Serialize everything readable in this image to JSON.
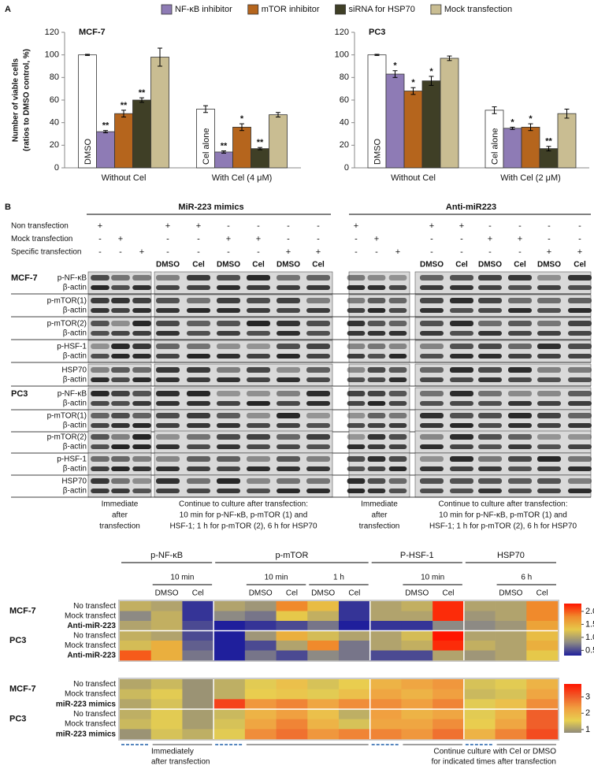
{
  "panel_a_label": "A",
  "chart_data": [
    {
      "type": "bar",
      "title": "MCF-7",
      "ylabel": [
        "Number of viable cells",
        "(ratios  to DMSO control, %)"
      ],
      "categories": [
        "Without Cel",
        "With Cel (4 μM)"
      ],
      "ylim": [
        0,
        120
      ],
      "yticks": [
        0,
        20,
        40,
        60,
        80,
        100,
        120
      ],
      "series": [
        {
          "color": "#ffffff",
          "values": [
            100,
            52
          ],
          "errors": [
            0.5,
            3
          ],
          "bar_labels": [
            "DMSO",
            "Cel alone"
          ]
        },
        {
          "name": "NF-κB inhibitor",
          "color": "#8e7bb5",
          "values": [
            32,
            14
          ],
          "errors": [
            1,
            1
          ],
          "annotations": [
            "**",
            "**"
          ]
        },
        {
          "name": "mTOR inhibitor",
          "color": "#b5651d",
          "values": [
            48,
            36
          ],
          "errors": [
            3,
            3
          ],
          "annotations": [
            "**",
            "*"
          ]
        },
        {
          "name": "siRNA for HSP70",
          "color": "#3f3f26",
          "values": [
            60,
            17
          ],
          "errors": [
            2,
            1
          ],
          "annotations": [
            "**",
            "**"
          ]
        },
        {
          "name": "Mock transfection",
          "color": "#c9bd92",
          "values": [
            98,
            47
          ],
          "errors": [
            8,
            2
          ]
        }
      ]
    },
    {
      "type": "bar",
      "title": "PC3",
      "categories": [
        "Without Cel",
        "With Cel (2 μM)"
      ],
      "ylim": [
        0,
        120
      ],
      "yticks": [
        0,
        20,
        40,
        60,
        80,
        100,
        120
      ],
      "series": [
        {
          "color": "#ffffff",
          "values": [
            100,
            51
          ],
          "errors": [
            0.5,
            3
          ],
          "bar_labels": [
            "DMSO",
            "Cel alone"
          ]
        },
        {
          "color": "#8e7bb5",
          "values": [
            83,
            35
          ],
          "errors": [
            3,
            1
          ],
          "annotations": [
            "*",
            "*"
          ]
        },
        {
          "color": "#b5651d",
          "values": [
            68,
            36
          ],
          "errors": [
            3,
            3
          ],
          "annotations": [
            "*",
            "*"
          ]
        },
        {
          "color": "#3f3f26",
          "values": [
            77,
            17
          ],
          "errors": [
            4,
            2
          ],
          "annotations": [
            "*",
            "**"
          ]
        },
        {
          "color": "#c9bd92",
          "values": [
            97,
            48
          ],
          "errors": [
            2,
            4
          ]
        }
      ]
    },
    {
      "type": "heatmap",
      "groups": [
        {
          "name": "p-NF-κB",
          "times": [
            "10 min"
          ],
          "columns": [
            null,
            "DMSO",
            "Cel"
          ]
        },
        {
          "name": "p-mTOR",
          "times": [
            "10 min",
            "1 h"
          ],
          "columns": [
            null,
            "DMSO",
            "Cel",
            "DMSO",
            "Cel"
          ]
        },
        {
          "name": "P-HSF-1",
          "times": [
            "10 min"
          ],
          "columns": [
            null,
            "DMSO",
            "Cel"
          ]
        },
        {
          "name": "HSP70",
          "times": [
            "6 h"
          ],
          "columns": [
            null,
            "DMSO",
            "Cel"
          ]
        }
      ],
      "row_groups": [
        "MCF-7",
        "PC3"
      ],
      "rows": [
        "No transfect",
        "Mock transfect",
        "Anti-miR-223",
        "No transfect",
        "Mock transfect",
        "Anti-miR-223"
      ],
      "values": [
        [
          1.1,
          1.0,
          0.4,
          1.0,
          0.9,
          1.8,
          1.4,
          0.4,
          1.0,
          1.1,
          2.2,
          1.0,
          1.0,
          1.8
        ],
        [
          0.8,
          1.1,
          0.4,
          0.8,
          0.7,
          1.3,
          1.1,
          0.4,
          1.0,
          1.0,
          2.2,
          0.9,
          1.0,
          1.8
        ],
        [
          1.0,
          1.1,
          0.5,
          0.3,
          0.4,
          0.5,
          0.7,
          0.3,
          0.4,
          0.4,
          0.8,
          0.8,
          0.9,
          1.6
        ],
        [
          1.1,
          1.0,
          0.5,
          0.3,
          0.9,
          1.5,
          1.2,
          1.0,
          1.0,
          1.2,
          2.3,
          1.0,
          1.0,
          1.4
        ],
        [
          1.2,
          1.5,
          0.6,
          0.3,
          0.5,
          1.0,
          1.8,
          0.7,
          1.0,
          1.1,
          2.2,
          1.1,
          1.0,
          1.5
        ],
        [
          2.0,
          1.5,
          0.7,
          0.3,
          0.7,
          0.5,
          0.8,
          0.7,
          0.5,
          0.5,
          1.0,
          0.9,
          1.0,
          1.3
        ]
      ],
      "clim": [
        0.3,
        2.3
      ],
      "cticks": [
        0.5,
        {
          "value": 1,
          "label": "1.0"
        },
        1.5,
        {
          "value": 2,
          "label": "2.0"
        }
      ],
      "colors": [
        "#1f1f9c",
        "#8d8a84",
        "#e6c84a",
        "#f08a2c",
        "#ff1500"
      ]
    },
    {
      "type": "heatmap",
      "row_groups": [
        "MCF-7",
        "PC3"
      ],
      "rows": [
        "No transfect",
        "Mock transfect",
        "miR-223 mimics",
        "No transfect",
        "Mock transfect",
        "miR-223 mimics"
      ],
      "values": [
        [
          1.1,
          1.3,
          0.9,
          1.2,
          1.5,
          1.8,
          1.4,
          1.6,
          2.0,
          2.2,
          2.4,
          1.4,
          1.5,
          2.0
        ],
        [
          1.3,
          1.5,
          0.9,
          1.2,
          1.6,
          1.7,
          1.5,
          1.8,
          2.2,
          2.0,
          2.3,
          1.3,
          1.4,
          2.2
        ],
        [
          1.1,
          1.4,
          0.9,
          3.3,
          2.4,
          2.6,
          2.2,
          2.5,
          2.5,
          2.3,
          2.6,
          1.5,
          1.8,
          2.5
        ],
        [
          1.2,
          1.5,
          1.0,
          1.3,
          2.0,
          2.3,
          1.8,
          1.2,
          2.3,
          2.0,
          2.2,
          1.5,
          2.0,
          3.0
        ],
        [
          1.3,
          1.5,
          1.0,
          1.4,
          2.2,
          2.6,
          2.0,
          1.4,
          2.2,
          2.2,
          2.5,
          1.6,
          2.2,
          3.0
        ],
        [
          0.9,
          1.4,
          1.2,
          1.5,
          2.5,
          2.8,
          2.4,
          2.6,
          2.6,
          2.4,
          2.8,
          2.0,
          2.6,
          3.2
        ]
      ],
      "clim": [
        0.8,
        3.8
      ],
      "cticks": [
        1,
        2,
        3
      ],
      "colors": [
        "#8f8a7a",
        "#e8d050",
        "#f0a040",
        "#f05a28",
        "#ff1500"
      ]
    }
  ],
  "panel_b": {
    "label": "B",
    "treatments": [
      "Non transfection",
      "Mock transfection",
      "Specific transfection"
    ],
    "sides": [
      {
        "title": "MiR-223 mimics",
        "signs": [
          [
            "+",
            null,
            null,
            "+",
            "+",
            "-",
            "-",
            "-",
            "-"
          ],
          [
            "-",
            "+",
            null,
            "-",
            "-",
            "+",
            "+",
            "-",
            "-"
          ],
          [
            "-",
            "-",
            "+",
            "-",
            "-",
            "-",
            "-",
            "+",
            "+"
          ]
        ],
        "conditions": [
          "DMSO",
          "Cel",
          "DMSO",
          "Cel",
          "DMSO",
          "Cel"
        ],
        "caption_immediate": [
          "Immediate",
          "after",
          "transfection"
        ],
        "caption_continue": [
          "Continue to culture after transfection:",
          "10 min for p-NF-κB, p-mTOR (1)  and",
          "HSF-1; 1 h for p-mTOR (2), 6 h for HSP70"
        ]
      },
      {
        "title": "Anti-miR223",
        "signs": [
          [
            "+",
            null,
            null,
            "+",
            "+",
            "-",
            "-",
            "-",
            "-"
          ],
          [
            "-",
            "+",
            null,
            "-",
            "-",
            "+",
            "+",
            "-",
            "-"
          ],
          [
            "-",
            "-",
            "+",
            "-",
            "-",
            "-",
            "-",
            "+",
            "+"
          ]
        ],
        "conditions": [
          "DMSO",
          "Cel",
          "DMSO",
          "Cel",
          "DMSO",
          "Cel"
        ],
        "caption_immediate": [
          "Immediate",
          "after",
          "transfection"
        ],
        "caption_continue": [
          "Continue to culture after transfection:",
          "10 min for p-NF-κB, p-mTOR (1)  and",
          "HSF-1; 1 h for p-mTOR (2), 6 h for HSP70"
        ]
      }
    ],
    "cell_lines": [
      {
        "name": "MCF-7",
        "blots": [
          [
            "p-NF-κB",
            "β-actin"
          ],
          [
            "p-mTOR(1)",
            "β-actin"
          ],
          [
            "p-mTOR(2)",
            "β-actin"
          ],
          [
            "p-HSF-1",
            "β-actin"
          ],
          [
            "HSP70",
            "β-actin"
          ]
        ]
      },
      {
        "name": "PC3",
        "blots": [
          [
            "p-NF-κB",
            "β-actin"
          ],
          [
            "p-mTOR(1)",
            "β-actin"
          ],
          [
            "p-mTOR(2)",
            "β-actin"
          ],
          [
            "p-HSF-1",
            "β-actin"
          ],
          [
            "HSP70",
            "β-actin"
          ]
        ]
      }
    ]
  },
  "heatmap_notes": {
    "immediate": [
      "Immediately",
      "after transfection"
    ],
    "continue": [
      "Continue culture with Cel or DMSO",
      "for indicated times after transfection"
    ]
  }
}
